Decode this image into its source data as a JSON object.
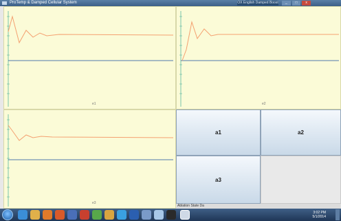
{
  "window": {
    "title": "ProTemp & Damped Cellular System",
    "center_title": "OX English Damped Boost",
    "buttons": [
      "_",
      "□",
      "x"
    ]
  },
  "panels": [
    {
      "name": "plot-e1",
      "label": "e1"
    },
    {
      "name": "plot-e2",
      "label": "e2"
    },
    {
      "name": "plot-e3",
      "label": "e3"
    }
  ],
  "grid_buttons": {
    "b1": "a1",
    "b2": "a2",
    "b3": "a3"
  },
  "status": "Ablation State Da",
  "taskbar": {
    "time": "3:02 PM",
    "date": "5/1/2014"
  },
  "colors": {
    "plot_bg": "#fbfbd7",
    "signal": "#f4a070",
    "axis": "#1a4fa0",
    "ticks": "#5ab8a0"
  }
}
